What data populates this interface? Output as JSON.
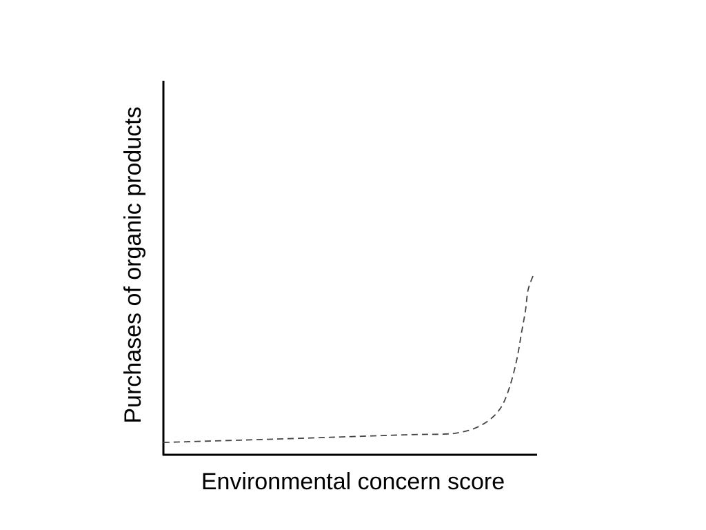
{
  "chart_data": {
    "type": "line",
    "title": "",
    "xlabel": "Environmental concern score",
    "ylabel": "Purchases of organic products",
    "xlim": [
      0,
      100
    ],
    "ylim": [
      0,
      100
    ],
    "grid": false,
    "ticks": false,
    "series": [
      {
        "style": "dashed",
        "color": "#444444",
        "x": [
          0,
          30.1,
          48.5,
          67.0,
          74.4,
          79.0,
          83.6,
          87.6,
          90.6,
          92.8,
          94.6,
          95.9,
          96.9,
          97.6,
          99.1
        ],
        "y": [
          3.3,
          4.2,
          4.8,
          5.4,
          5.5,
          5.9,
          7.2,
          9.6,
          13.1,
          18.6,
          25.6,
          33.0,
          38.6,
          44.1,
          48.3
        ]
      }
    ]
  }
}
